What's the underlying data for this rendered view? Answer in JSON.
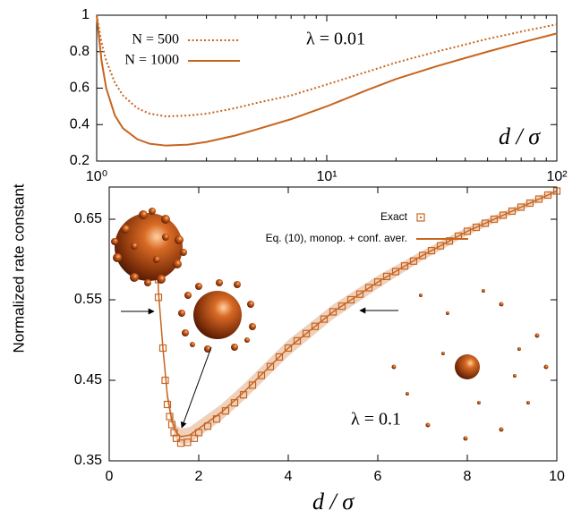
{
  "ylabel": "Normalized rate constant",
  "chart_data": [
    {
      "type": "line",
      "xscale": "log",
      "xlim": [
        1,
        100
      ],
      "ylim": [
        0.2,
        1
      ],
      "xticks": [
        {
          "value": 1,
          "label": "10⁰"
        },
        {
          "value": 10,
          "label": "10¹"
        },
        {
          "value": 100,
          "label": "10²"
        }
      ],
      "yticks": [
        0.2,
        0.4,
        0.6,
        0.8,
        1
      ],
      "annotations": [
        "λ = 0.01",
        "d / σ"
      ],
      "series": [
        {
          "name": "N = 500",
          "color": "#c8641e",
          "style": "dotted",
          "x": [
            1,
            1.05,
            1.1,
            1.2,
            1.3,
            1.5,
            1.7,
            2,
            2.5,
            3,
            4,
            5,
            7,
            10,
            15,
            20,
            30,
            50,
            70,
            100
          ],
          "values": [
            1.0,
            0.85,
            0.75,
            0.63,
            0.56,
            0.49,
            0.46,
            0.445,
            0.45,
            0.46,
            0.49,
            0.52,
            0.56,
            0.62,
            0.69,
            0.74,
            0.8,
            0.87,
            0.91,
            0.95
          ]
        },
        {
          "name": "N = 1000",
          "color": "#c8641e",
          "style": "solid",
          "x": [
            1,
            1.05,
            1.1,
            1.2,
            1.3,
            1.5,
            1.7,
            2,
            2.5,
            3,
            4,
            5,
            7,
            10,
            15,
            20,
            30,
            50,
            70,
            100
          ],
          "values": [
            1.0,
            0.75,
            0.6,
            0.45,
            0.38,
            0.32,
            0.295,
            0.285,
            0.29,
            0.305,
            0.34,
            0.375,
            0.43,
            0.5,
            0.59,
            0.65,
            0.72,
            0.8,
            0.85,
            0.9
          ]
        }
      ]
    },
    {
      "type": "line",
      "xlabel": "d / σ",
      "xlim": [
        0,
        10
      ],
      "ylim": [
        0.35,
        0.69
      ],
      "xticks": [
        0,
        2,
        4,
        6,
        8,
        10
      ],
      "yticks": [
        0.35,
        0.45,
        0.55,
        0.65
      ],
      "annotations": [
        "λ = 0.1"
      ],
      "series": [
        {
          "name": "Exact",
          "color": "#c8641e",
          "style": "squares",
          "x": [
            1.1,
            1.1,
            1.2,
            1.25,
            1.3,
            1.35,
            1.4,
            1.45,
            1.5,
            1.6,
            1.75,
            1.9,
            2.0,
            2.2,
            2.4,
            2.6,
            2.8,
            3.0,
            3.2,
            3.4,
            3.6,
            3.8,
            4.0,
            4.2,
            4.4,
            4.6,
            4.8,
            5.0,
            5.2,
            5.4,
            5.6,
            5.8,
            6.0,
            6.2,
            6.4,
            6.6,
            6.8,
            7.0,
            7.2,
            7.4,
            7.6,
            7.8,
            8.0,
            8.2,
            8.4,
            8.6,
            8.8,
            9.0,
            9.2,
            9.4,
            9.6,
            9.8,
            10.0
          ],
          "values": [
            0.575,
            0.553,
            0.49,
            0.45,
            0.42,
            0.405,
            0.395,
            0.385,
            0.378,
            0.372,
            0.373,
            0.378,
            0.385,
            0.393,
            0.402,
            0.412,
            0.422,
            0.432,
            0.444,
            0.456,
            0.467,
            0.479,
            0.49,
            0.499,
            0.508,
            0.517,
            0.526,
            0.535,
            0.542,
            0.55,
            0.557,
            0.565,
            0.572,
            0.579,
            0.585,
            0.592,
            0.598,
            0.605,
            0.611,
            0.617,
            0.623,
            0.629,
            0.635,
            0.64,
            0.645,
            0.65,
            0.655,
            0.66,
            0.665,
            0.67,
            0.675,
            0.68,
            0.685
          ]
        },
        {
          "name": "Eq. (10), monop. + conf. aver.",
          "color": "#c8641e",
          "style": "band",
          "x": [
            1.08,
            1.1,
            1.2,
            1.3,
            1.4,
            1.5,
            1.6,
            1.8,
            2.0,
            2.5,
            3,
            4,
            5,
            6,
            7,
            8,
            9,
            10
          ],
          "values": [
            0.6,
            0.56,
            0.49,
            0.43,
            0.4,
            0.385,
            0.38,
            0.382,
            0.39,
            0.41,
            0.435,
            0.49,
            0.535,
            0.572,
            0.605,
            0.635,
            0.66,
            0.685
          ],
          "errors": [
            0.002,
            0.003,
            0.005,
            0.007,
            0.008,
            0.009,
            0.01,
            0.01,
            0.01,
            0.01,
            0.01,
            0.01,
            0.009,
            0.008,
            0.006,
            0.005,
            0.004,
            0.003
          ]
        }
      ]
    }
  ]
}
